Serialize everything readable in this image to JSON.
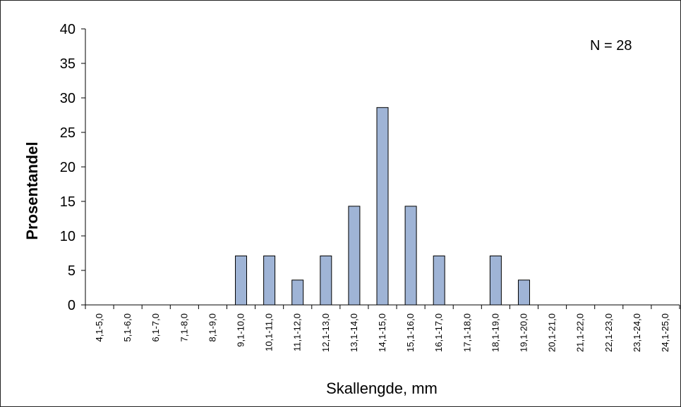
{
  "chart_data": {
    "type": "bar",
    "title": "",
    "xlabel": "Skallengde, mm",
    "ylabel": "Prosentandel",
    "ylim": [
      0,
      40
    ],
    "yticks": [
      0,
      5,
      10,
      15,
      20,
      25,
      30,
      35,
      40
    ],
    "grid": false,
    "annotation": "N = 28",
    "bar_color": "#9fb4d6",
    "categories": [
      "4,1-5,0",
      "5,1-6,0",
      "6,1-7,0",
      "7,1-8,0",
      "8,1-9,0",
      "9,1-10,0",
      "10,1-11,0",
      "11,1-12,0",
      "12,1-13,0",
      "13,1-14,0",
      "14,1-15,0",
      "15,1-16,0",
      "16,1-17,0",
      "17,1-18,0",
      "18,1-19,0",
      "19,1-20,0",
      "20,1-21,0",
      "21,1-22,0",
      "22,1-23,0",
      "23,1-24,0",
      "24,1-25,0"
    ],
    "values": [
      0,
      0,
      0,
      0,
      0,
      7.1,
      7.1,
      3.6,
      7.1,
      14.3,
      28.6,
      14.3,
      7.1,
      0,
      7.1,
      3.6,
      0,
      0,
      0,
      0,
      0
    ]
  }
}
